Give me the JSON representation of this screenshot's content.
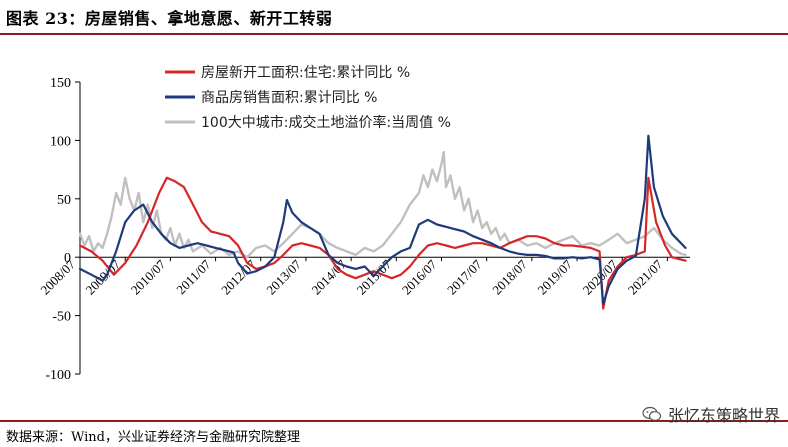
{
  "header": {
    "title": "图表 23：房屋销售、拿地意愿、新开工转弱"
  },
  "footer": {
    "source": "数据来源：Wind，兴业证券经济与金融研究院整理",
    "watermark": "张忆东策略世界",
    "watermark_icon": "wechat-icon"
  },
  "chart_data": {
    "type": "line",
    "ylim": [
      -100,
      150
    ],
    "yticks": [
      150,
      100,
      50,
      0,
      -50,
      -100
    ],
    "ytick_labels": [
      "150",
      "100",
      "50",
      "0",
      "-50",
      "-100"
    ],
    "xlim": [
      2008.5,
      2022.0
    ],
    "xticks": [
      2008.5,
      2009.5,
      2010.5,
      2011.5,
      2012.5,
      2013.5,
      2014.5,
      2015.5,
      2016.5,
      2017.5,
      2018.5,
      2019.5,
      2020.5,
      2021.5
    ],
    "xtick_labels": [
      "2008/07",
      "2009/07",
      "2010/07",
      "2011/07",
      "2012/07",
      "2013/07",
      "2014/07",
      "2015/07",
      "2016/07",
      "2017/07",
      "2018/07",
      "2019/07",
      "2020/07",
      "2021/07"
    ],
    "legend": "top-left",
    "grid": false,
    "series": [
      {
        "name": "房屋新开工面积:住宅:累计同比 %",
        "color": "#d62728",
        "points": [
          [
            2008.5,
            10
          ],
          [
            2008.75,
            5
          ],
          [
            2009.0,
            -3
          ],
          [
            2009.25,
            -15
          ],
          [
            2009.5,
            -5
          ],
          [
            2009.75,
            10
          ],
          [
            2010.0,
            30
          ],
          [
            2010.25,
            55
          ],
          [
            2010.42,
            68
          ],
          [
            2010.6,
            65
          ],
          [
            2010.8,
            60
          ],
          [
            2011.0,
            45
          ],
          [
            2011.2,
            30
          ],
          [
            2011.4,
            22
          ],
          [
            2011.6,
            20
          ],
          [
            2011.8,
            18
          ],
          [
            2012.0,
            10
          ],
          [
            2012.2,
            -5
          ],
          [
            2012.4,
            -10
          ],
          [
            2012.6,
            -8
          ],
          [
            2012.8,
            -5
          ],
          [
            2013.0,
            2
          ],
          [
            2013.2,
            10
          ],
          [
            2013.4,
            12
          ],
          [
            2013.6,
            10
          ],
          [
            2013.8,
            8
          ],
          [
            2014.0,
            2
          ],
          [
            2014.2,
            -10
          ],
          [
            2014.4,
            -15
          ],
          [
            2014.6,
            -18
          ],
          [
            2014.8,
            -15
          ],
          [
            2015.0,
            -12
          ],
          [
            2015.2,
            -15
          ],
          [
            2015.4,
            -18
          ],
          [
            2015.6,
            -15
          ],
          [
            2015.8,
            -8
          ],
          [
            2016.0,
            2
          ],
          [
            2016.2,
            10
          ],
          [
            2016.4,
            12
          ],
          [
            2016.6,
            10
          ],
          [
            2016.8,
            8
          ],
          [
            2017.0,
            10
          ],
          [
            2017.2,
            12
          ],
          [
            2017.4,
            12
          ],
          [
            2017.6,
            10
          ],
          [
            2017.8,
            8
          ],
          [
            2018.0,
            12
          ],
          [
            2018.2,
            15
          ],
          [
            2018.4,
            18
          ],
          [
            2018.6,
            18
          ],
          [
            2018.8,
            16
          ],
          [
            2019.0,
            12
          ],
          [
            2019.2,
            10
          ],
          [
            2019.4,
            10
          ],
          [
            2019.6,
            9
          ],
          [
            2019.8,
            8
          ],
          [
            2020.0,
            5
          ],
          [
            2020.08,
            -44
          ],
          [
            2020.2,
            -20
          ],
          [
            2020.4,
            -8
          ],
          [
            2020.6,
            0
          ],
          [
            2020.8,
            2
          ],
          [
            2021.0,
            5
          ],
          [
            2021.08,
            68
          ],
          [
            2021.25,
            30
          ],
          [
            2021.45,
            10
          ],
          [
            2021.6,
            0
          ],
          [
            2021.8,
            -2
          ],
          [
            2021.9,
            -3
          ]
        ]
      },
      {
        "name": "商品房销售面积:累计同比 %",
        "color": "#1f3a7a",
        "points": [
          [
            2008.5,
            -10
          ],
          [
            2008.75,
            -15
          ],
          [
            2009.0,
            -20
          ],
          [
            2009.1,
            -15
          ],
          [
            2009.3,
            5
          ],
          [
            2009.5,
            30
          ],
          [
            2009.7,
            40
          ],
          [
            2009.9,
            45
          ],
          [
            2010.1,
            30
          ],
          [
            2010.3,
            20
          ],
          [
            2010.5,
            12
          ],
          [
            2010.7,
            8
          ],
          [
            2010.9,
            10
          ],
          [
            2011.1,
            12
          ],
          [
            2011.3,
            10
          ],
          [
            2011.5,
            8
          ],
          [
            2011.7,
            6
          ],
          [
            2011.9,
            4
          ],
          [
            2012.0,
            -5
          ],
          [
            2012.2,
            -14
          ],
          [
            2012.4,
            -12
          ],
          [
            2012.6,
            -8
          ],
          [
            2012.8,
            0
          ],
          [
            2013.0,
            30
          ],
          [
            2013.08,
            49
          ],
          [
            2013.2,
            38
          ],
          [
            2013.4,
            30
          ],
          [
            2013.6,
            25
          ],
          [
            2013.8,
            20
          ],
          [
            2014.0,
            2
          ],
          [
            2014.2,
            -5
          ],
          [
            2014.4,
            -8
          ],
          [
            2014.6,
            -10
          ],
          [
            2014.8,
            -8
          ],
          [
            2015.0,
            -16
          ],
          [
            2015.2,
            -8
          ],
          [
            2015.4,
            0
          ],
          [
            2015.6,
            5
          ],
          [
            2015.8,
            8
          ],
          [
            2016.0,
            28
          ],
          [
            2016.2,
            32
          ],
          [
            2016.4,
            28
          ],
          [
            2016.6,
            26
          ],
          [
            2016.8,
            24
          ],
          [
            2017.0,
            22
          ],
          [
            2017.2,
            18
          ],
          [
            2017.4,
            15
          ],
          [
            2017.6,
            12
          ],
          [
            2017.8,
            8
          ],
          [
            2018.0,
            5
          ],
          [
            2018.2,
            3
          ],
          [
            2018.4,
            2
          ],
          [
            2018.6,
            2
          ],
          [
            2018.8,
            1
          ],
          [
            2019.0,
            -1
          ],
          [
            2019.2,
            -1
          ],
          [
            2019.4,
            0
          ],
          [
            2019.6,
            -1
          ],
          [
            2019.8,
            0
          ],
          [
            2020.0,
            -2
          ],
          [
            2020.08,
            -40
          ],
          [
            2020.2,
            -25
          ],
          [
            2020.4,
            -10
          ],
          [
            2020.6,
            -3
          ],
          [
            2020.8,
            1
          ],
          [
            2021.0,
            50
          ],
          [
            2021.08,
            104
          ],
          [
            2021.2,
            60
          ],
          [
            2021.4,
            35
          ],
          [
            2021.6,
            20
          ],
          [
            2021.8,
            12
          ],
          [
            2021.9,
            8
          ]
        ]
      },
      {
        "name": "100大中城市:成交土地溢价率:当周值 %",
        "color": "#c0c0c0",
        "points": [
          [
            2008.5,
            20
          ],
          [
            2008.6,
            10
          ],
          [
            2008.7,
            18
          ],
          [
            2008.8,
            5
          ],
          [
            2008.9,
            12
          ],
          [
            2009.0,
            8
          ],
          [
            2009.1,
            20
          ],
          [
            2009.2,
            35
          ],
          [
            2009.3,
            55
          ],
          [
            2009.4,
            45
          ],
          [
            2009.5,
            68
          ],
          [
            2009.6,
            50
          ],
          [
            2009.7,
            40
          ],
          [
            2009.8,
            55
          ],
          [
            2009.9,
            30
          ],
          [
            2010.0,
            45
          ],
          [
            2010.1,
            25
          ],
          [
            2010.2,
            40
          ],
          [
            2010.3,
            20
          ],
          [
            2010.4,
            15
          ],
          [
            2010.5,
            25
          ],
          [
            2010.6,
            10
          ],
          [
            2010.7,
            20
          ],
          [
            2010.8,
            8
          ],
          [
            2010.9,
            15
          ],
          [
            2011.0,
            5
          ],
          [
            2011.2,
            10
          ],
          [
            2011.4,
            3
          ],
          [
            2011.6,
            8
          ],
          [
            2011.8,
            2
          ],
          [
            2012.0,
            5
          ],
          [
            2012.2,
            0
          ],
          [
            2012.4,
            8
          ],
          [
            2012.6,
            10
          ],
          [
            2012.8,
            5
          ],
          [
            2013.0,
            12
          ],
          [
            2013.2,
            20
          ],
          [
            2013.4,
            28
          ],
          [
            2013.6,
            25
          ],
          [
            2013.8,
            20
          ],
          [
            2014.0,
            12
          ],
          [
            2014.2,
            8
          ],
          [
            2014.4,
            5
          ],
          [
            2014.6,
            2
          ],
          [
            2014.8,
            8
          ],
          [
            2015.0,
            5
          ],
          [
            2015.2,
            10
          ],
          [
            2015.4,
            20
          ],
          [
            2015.6,
            30
          ],
          [
            2015.8,
            45
          ],
          [
            2016.0,
            55
          ],
          [
            2016.1,
            70
          ],
          [
            2016.2,
            60
          ],
          [
            2016.3,
            75
          ],
          [
            2016.4,
            65
          ],
          [
            2016.5,
            80
          ],
          [
            2016.55,
            90
          ],
          [
            2016.6,
            60
          ],
          [
            2016.7,
            70
          ],
          [
            2016.8,
            50
          ],
          [
            2016.9,
            60
          ],
          [
            2017.0,
            40
          ],
          [
            2017.1,
            50
          ],
          [
            2017.2,
            30
          ],
          [
            2017.3,
            40
          ],
          [
            2017.4,
            25
          ],
          [
            2017.5,
            30
          ],
          [
            2017.6,
            20
          ],
          [
            2017.7,
            25
          ],
          [
            2017.8,
            15
          ],
          [
            2017.9,
            20
          ],
          [
            2018.0,
            12
          ],
          [
            2018.2,
            15
          ],
          [
            2018.4,
            10
          ],
          [
            2018.6,
            12
          ],
          [
            2018.8,
            8
          ],
          [
            2019.0,
            12
          ],
          [
            2019.2,
            15
          ],
          [
            2019.4,
            18
          ],
          [
            2019.6,
            10
          ],
          [
            2019.8,
            12
          ],
          [
            2020.0,
            10
          ],
          [
            2020.2,
            15
          ],
          [
            2020.4,
            20
          ],
          [
            2020.6,
            12
          ],
          [
            2020.8,
            15
          ],
          [
            2021.0,
            18
          ],
          [
            2021.2,
            25
          ],
          [
            2021.4,
            15
          ],
          [
            2021.6,
            8
          ],
          [
            2021.8,
            3
          ],
          [
            2021.9,
            2
          ]
        ]
      }
    ]
  }
}
